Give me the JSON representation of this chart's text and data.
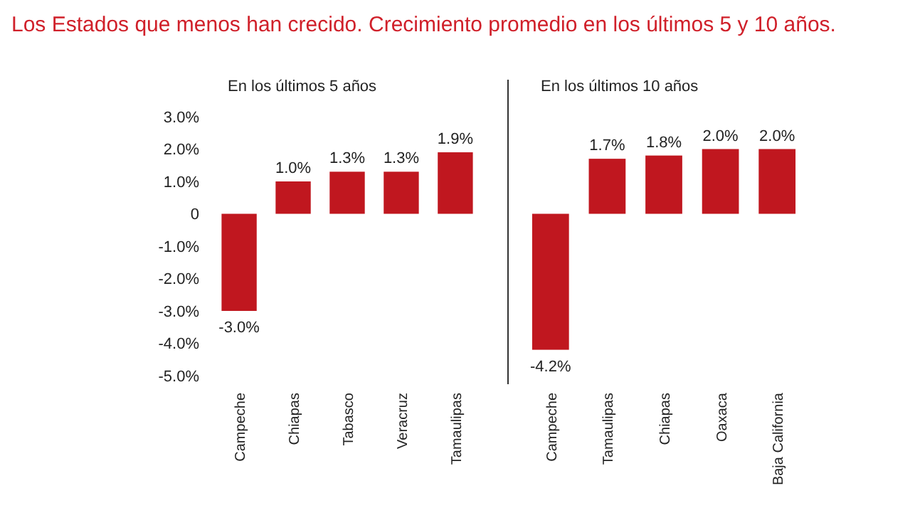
{
  "chart_data": [
    {
      "type": "bar",
      "title": "Los Estados que menos han crecido. Crecimiento promedio en los últimos 5 y 10 años.",
      "subtitle": "En los últimos 5 años",
      "categories": [
        "Campeche",
        "Chiapas",
        "Tabasco",
        "Veracruz",
        "Tamaulipas"
      ],
      "values": [
        -3.0,
        1.0,
        1.3,
        1.3,
        1.9
      ],
      "value_labels": [
        "-3.0%",
        "1.0%",
        "1.3%",
        "1.3%",
        "1.9%"
      ],
      "color": "#c0171f",
      "ylim": [
        -5,
        3
      ],
      "yticks": [
        {
          "value": 3,
          "label": "3.0%"
        },
        {
          "value": 2,
          "label": "2.0%"
        },
        {
          "value": 1,
          "label": "1.0%"
        },
        {
          "value": 0,
          "label": "0"
        },
        {
          "value": -1,
          "label": "-1.0%"
        },
        {
          "value": -2,
          "label": "-2.0%"
        },
        {
          "value": -3,
          "label": "-3.0%"
        },
        {
          "value": -4,
          "label": "-4.0%"
        },
        {
          "value": -5,
          "label": "-5.0%"
        }
      ],
      "grid": false
    },
    {
      "type": "bar",
      "title": "En los últimos 10 años",
      "categories": [
        "Campeche",
        "Tamaulipas",
        "Chiapas",
        "Oaxaca",
        "Baja California"
      ],
      "values": [
        -4.2,
        1.7,
        1.8,
        2.0,
        2.0
      ],
      "value_labels": [
        "-4.2%",
        "1.7%",
        "1.8%",
        "2.0%",
        "2.0%"
      ],
      "color": "#c0171f",
      "ylim": [
        -5,
        3
      ],
      "tick_labels": "x",
      "grid": false
    }
  ]
}
